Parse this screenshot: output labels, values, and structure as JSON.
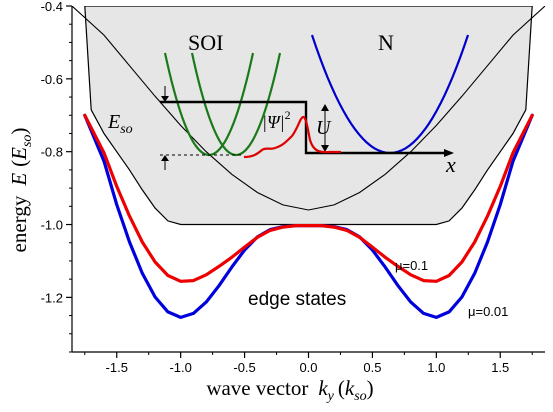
{
  "chart_data": {
    "type": "line",
    "xlabel_main": "wave vector",
    "xlabel_symbol": "k",
    "xlabel_sub": "y",
    "xlabel_unit": "so",
    "ylabel_main": "energy",
    "ylabel_symbol": "E",
    "ylabel_unit": "so",
    "xlim": [
      -1.85,
      1.85
    ],
    "ylim": [
      -1.35,
      -0.4
    ],
    "x_ticks": [
      -1.5,
      -1.0,
      -0.5,
      0.0,
      0.5,
      1.0,
      1.5
    ],
    "x_tick_labels": [
      "-1.5",
      "-1.0",
      "-0.5",
      "0.0",
      "0.5",
      "1.0",
      "1.5"
    ],
    "y_ticks": [
      -0.4,
      -0.6,
      -0.8,
      -1.0,
      -1.2
    ],
    "y_tick_labels": [
      "-0.4",
      "-0.6",
      "-0.8",
      "-1.0",
      "-1.2"
    ],
    "grid": false,
    "series": [
      {
        "name": "μ=0.01",
        "color": "#0000dd",
        "x": [
          -1.75,
          -1.6,
          -1.5,
          -1.4,
          -1.3,
          -1.2,
          -1.1,
          -1.0,
          -0.9,
          -0.8,
          -0.7,
          -0.6,
          -0.5,
          -0.4,
          -0.3,
          -0.2,
          -0.1,
          0.0,
          0.1,
          0.2,
          0.3,
          0.4,
          0.5,
          0.6,
          0.7,
          0.8,
          0.9,
          1.0,
          1.1,
          1.2,
          1.3,
          1.4,
          1.5,
          1.6,
          1.75
        ],
        "y": [
          -0.7,
          -0.826,
          -0.945,
          -1.048,
          -1.134,
          -1.199,
          -1.24,
          -1.255,
          -1.244,
          -1.213,
          -1.168,
          -1.117,
          -1.07,
          -1.034,
          -1.014,
          -1.006,
          -1.003,
          -1.003,
          -1.003,
          -1.006,
          -1.014,
          -1.034,
          -1.07,
          -1.117,
          -1.168,
          -1.213,
          -1.244,
          -1.255,
          -1.24,
          -1.199,
          -1.134,
          -1.048,
          -0.945,
          -0.826,
          -0.7
        ]
      },
      {
        "name": "μ=0.1",
        "color": "#ee0000",
        "x": [
          -1.75,
          -1.6,
          -1.5,
          -1.4,
          -1.3,
          -1.2,
          -1.1,
          -1.0,
          -0.9,
          -0.8,
          -0.7,
          -0.6,
          -0.5,
          -0.4,
          -0.3,
          -0.2,
          -0.1,
          0.0,
          0.1,
          0.2,
          0.3,
          0.4,
          0.5,
          0.6,
          0.7,
          0.8,
          0.9,
          1.0,
          1.1,
          1.2,
          1.3,
          1.4,
          1.5,
          1.6,
          1.75
        ],
        "y": [
          -0.7,
          -0.803,
          -0.895,
          -0.977,
          -1.048,
          -1.103,
          -1.14,
          -1.156,
          -1.154,
          -1.138,
          -1.115,
          -1.09,
          -1.062,
          -1.035,
          -1.016,
          -1.007,
          -1.003,
          -1.003,
          -1.003,
          -1.007,
          -1.016,
          -1.035,
          -1.062,
          -1.09,
          -1.115,
          -1.138,
          -1.154,
          -1.156,
          -1.14,
          -1.103,
          -1.048,
          -0.977,
          -0.895,
          -0.803,
          -0.7
        ]
      }
    ],
    "bulk_boundary": {
      "color": "#000000",
      "fill": "#e6e6e6",
      "x": [
        -1.75,
        -1.7,
        -1.6,
        -1.5,
        -1.4,
        -1.3,
        -1.2,
        -1.1,
        -1.0,
        1.0,
        1.1,
        1.2,
        1.3,
        1.4,
        1.5,
        1.6,
        1.7,
        1.75
      ],
      "y": [
        -0.4,
        -0.685,
        -0.75,
        -0.8,
        -0.85,
        -0.905,
        -0.955,
        -0.99,
        -1.0,
        -1.0,
        -0.99,
        -0.955,
        -0.905,
        -0.85,
        -0.8,
        -0.75,
        -0.685,
        -0.4
      ]
    },
    "parabola": {
      "color": "#000000",
      "x": [
        -1.85,
        -1.6,
        -1.4,
        -1.2,
        -1.0,
        -0.8,
        -0.6,
        -0.4,
        -0.2,
        0.0,
        0.2,
        0.4,
        0.6,
        0.8,
        1.0,
        1.2,
        1.4,
        1.6,
        1.85
      ],
      "y": [
        -0.4,
        -0.48,
        -0.564,
        -0.648,
        -0.728,
        -0.8,
        -0.862,
        -0.912,
        -0.946,
        -0.96,
        -0.946,
        -0.912,
        -0.862,
        -0.8,
        -0.728,
        -0.648,
        -0.564,
        -0.48,
        -0.4
      ]
    },
    "annotations": {
      "soi_label": "SOI",
      "n_label": "N",
      "eso_symbol": "E",
      "eso_sub": "so",
      "psi_label": "|Ψ|",
      "psi_sup": "2",
      "u_label": "U",
      "x_label": "x",
      "edge_states": "edge states",
      "mu1": "μ=0.1",
      "mu2": "μ=0.01"
    },
    "inset_colors": {
      "green": "#1a7a1a",
      "blue": "#0000cc",
      "red": "#dd0000"
    }
  }
}
